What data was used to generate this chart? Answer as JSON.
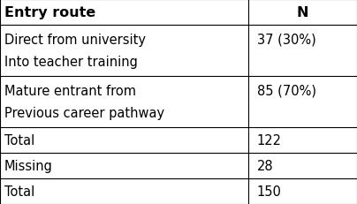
{
  "col1_header": "Entry route",
  "col2_header": "N",
  "rows": [
    {
      "col1_line1": "Direct from university",
      "col1_line2": "Into teacher training",
      "col2": "37 (30%)"
    },
    {
      "col1_line1": "Mature entrant from",
      "col1_line2": "Previous career pathway",
      "col2": "85 (70%)"
    },
    {
      "col1_line1": "Total",
      "col1_line2": "",
      "col2": "122"
    },
    {
      "col1_line1": "Missing",
      "col1_line2": "",
      "col2": "28"
    },
    {
      "col1_line1": "Total",
      "col1_line2": "",
      "col2": "150"
    }
  ],
  "background_color": "#ffffff",
  "text_color": "#000000",
  "line_color": "#000000",
  "col_split": 0.695,
  "font_size": 10.5,
  "header_font_size": 11.5,
  "fig_width": 4.04,
  "fig_height": 2.32,
  "dpi": 100
}
